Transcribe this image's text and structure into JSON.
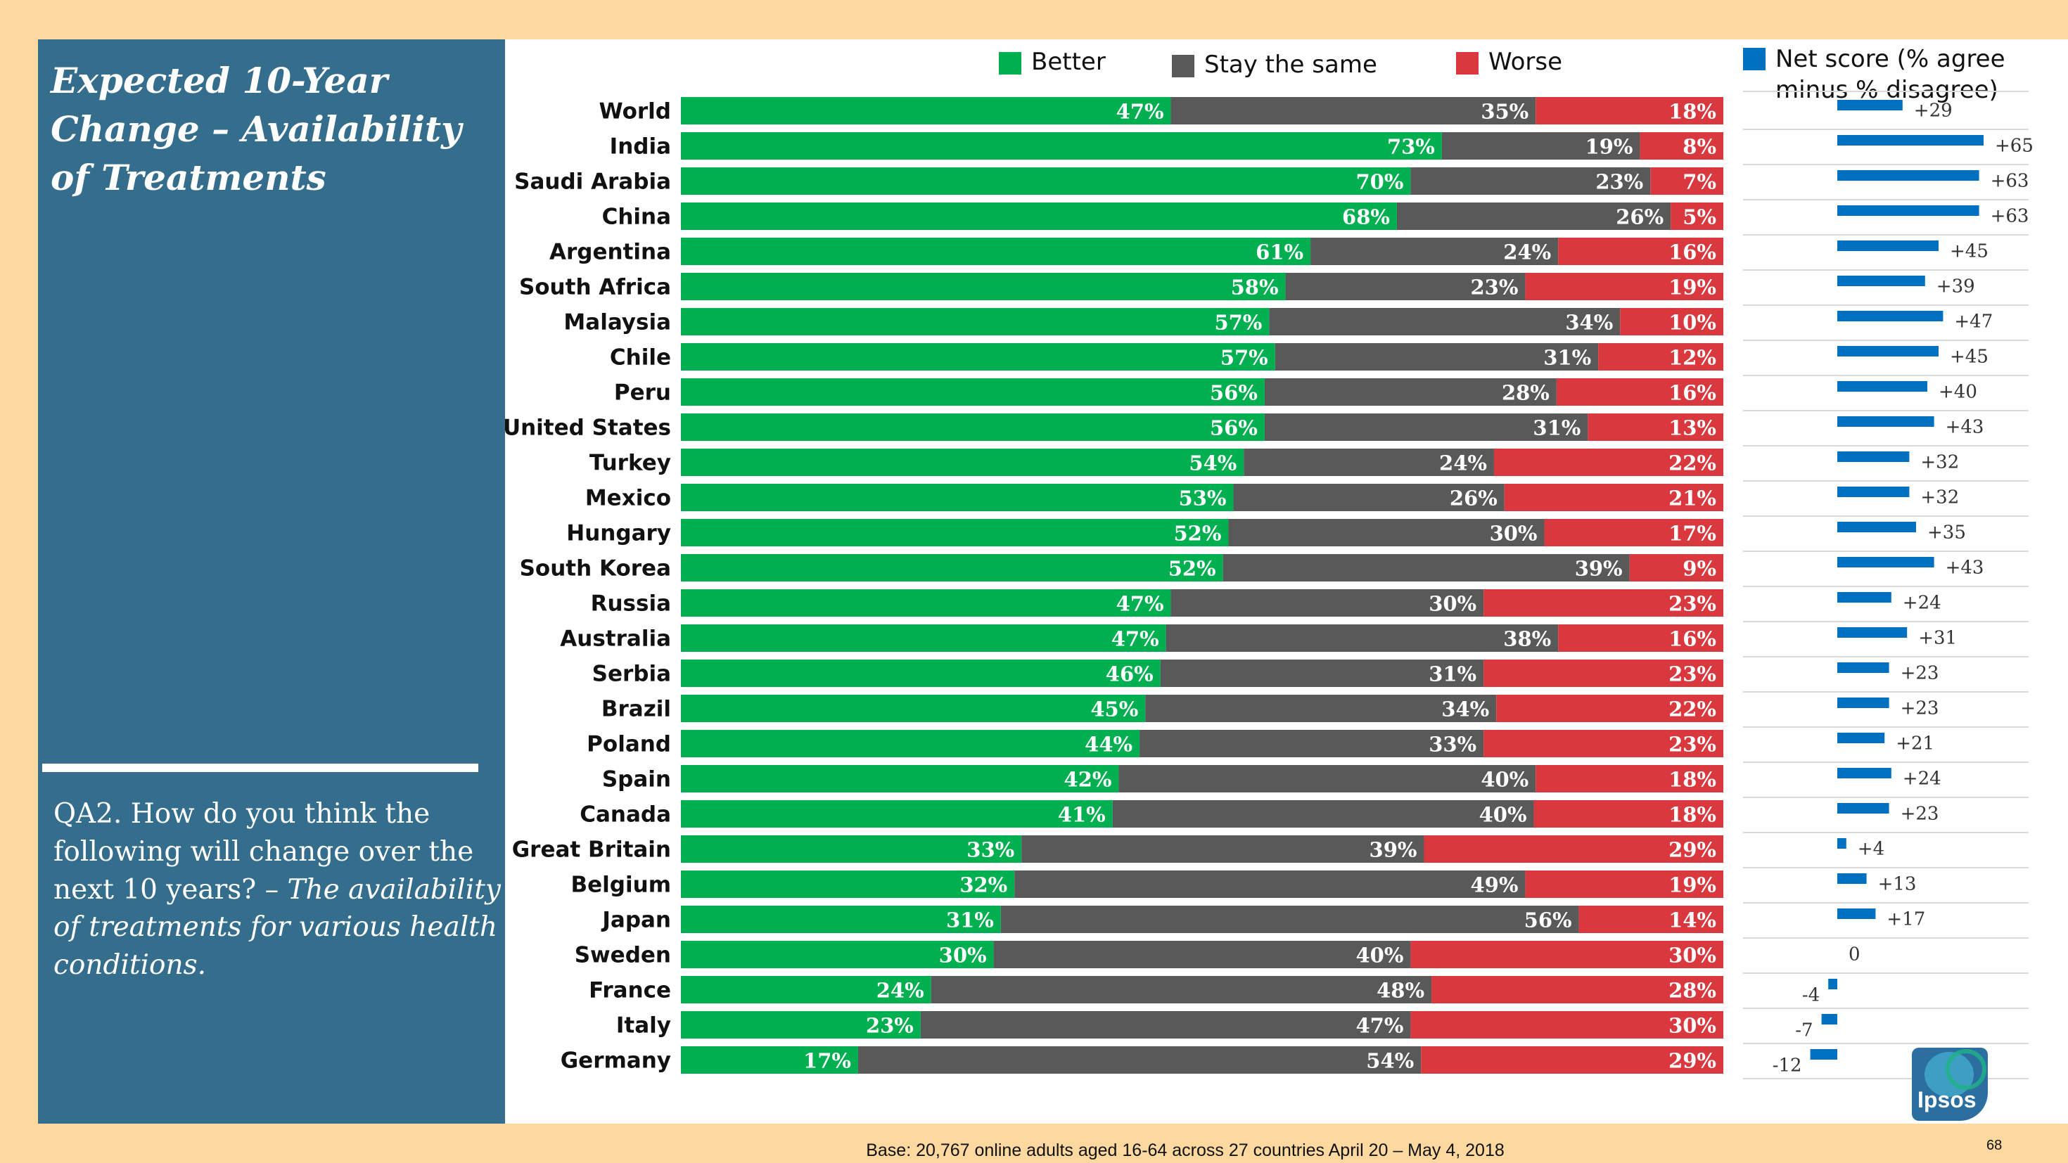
{
  "panel": {
    "title": "Expected 10-Year Change – Availability of Treatments",
    "question_prefix": "QA2. How do you think the following will change over the next 10 years? – ",
    "question_italic": "The availability of treatments for various health conditions."
  },
  "legend": {
    "better": "Better",
    "same": "Stay the same",
    "worse": "Worse",
    "net": "Net score (% agree minus % disagree)"
  },
  "colors": {
    "better": "#00b050",
    "same": "#595959",
    "worse": "#d9393e",
    "net": "#0070c0",
    "panel": "#356d8d",
    "background": "#fdd9a0"
  },
  "base_note": "Base: 20,767 online adults aged 16-64 across 27 countries  April 20 – May 4, 2018",
  "logo_text": "Ipsos",
  "page_number": "68",
  "chart_data": [
    {
      "type": "bar",
      "stacked": true,
      "orientation": "horizontal",
      "categories": [
        "World",
        "India",
        "Saudi Arabia",
        "China",
        "Argentina",
        "South Africa",
        "Malaysia",
        "Chile",
        "Peru",
        "United States",
        "Turkey",
        "Mexico",
        "Hungary",
        "South Korea",
        "Russia",
        "Australia",
        "Serbia",
        "Brazil",
        "Poland",
        "Spain",
        "Canada",
        "Great Britain",
        "Belgium",
        "Japan",
        "Sweden",
        "France",
        "Italy",
        "Germany"
      ],
      "series": [
        {
          "name": "Better",
          "values": [
            47,
            73,
            70,
            68,
            61,
            58,
            57,
            57,
            56,
            56,
            54,
            53,
            52,
            52,
            47,
            47,
            46,
            45,
            44,
            42,
            41,
            33,
            32,
            31,
            30,
            24,
            23,
            17
          ]
        },
        {
          "name": "Stay the same",
          "values": [
            35,
            19,
            23,
            26,
            24,
            23,
            34,
            31,
            28,
            31,
            24,
            26,
            30,
            39,
            30,
            38,
            31,
            34,
            33,
            40,
            40,
            39,
            49,
            56,
            40,
            48,
            47,
            54
          ]
        },
        {
          "name": "Worse",
          "values": [
            18,
            8,
            7,
            5,
            16,
            19,
            10,
            12,
            16,
            13,
            22,
            21,
            17,
            9,
            23,
            16,
            23,
            22,
            23,
            18,
            18,
            29,
            19,
            14,
            30,
            28,
            30,
            29
          ]
        }
      ],
      "labels": {
        "Better": [
          "47%",
          "73%",
          "70%",
          "68%",
          "61%",
          "58%",
          "57%",
          "57%",
          "56%",
          "56%",
          "54%",
          "53%",
          "52%",
          "52%",
          "47%",
          "47%",
          "46%",
          "45%",
          "44%",
          "42%",
          "41%",
          "33%",
          "32%",
          "31%",
          "30%",
          "24%",
          "23%",
          "17%"
        ],
        "Stay the same": [
          "35%",
          "19%",
          "23%",
          "26%",
          "24%",
          "23%",
          "34%",
          "31%",
          "28%",
          "31%",
          "24%",
          "26%",
          "30%",
          "39%",
          "30%",
          "38%",
          "31%",
          "34%",
          "33%",
          "40%",
          "40%",
          "39%",
          "49%",
          "56%",
          "40%",
          "48%",
          "47%",
          "54%"
        ],
        "Worse": [
          "18%",
          "8%",
          "7%",
          "5%",
          "16%",
          "19%",
          "10%",
          "12%",
          "16%",
          "13%",
          "22%",
          "21%",
          "17%",
          "9%",
          "23%",
          "16%",
          "23%",
          "22%",
          "23%",
          "18%",
          "18%",
          "29%",
          "19%",
          "14%",
          "30%",
          "28%",
          "30%",
          "29%"
        ]
      },
      "xlim": [
        0,
        100
      ],
      "legend": "top"
    },
    {
      "type": "bar",
      "orientation": "horizontal",
      "series": [
        {
          "name": "Net score (% agree minus % disagree)",
          "values": [
            29,
            65,
            63,
            63,
            45,
            39,
            47,
            45,
            40,
            43,
            32,
            32,
            35,
            43,
            24,
            31,
            23,
            23,
            21,
            24,
            23,
            4,
            13,
            17,
            0,
            -4,
            -7,
            -12
          ]
        }
      ],
      "value_labels": [
        "+29",
        "+65",
        "+63",
        "+63",
        "+45",
        "+39",
        "+47",
        "+45",
        "+40",
        "+43",
        "+32",
        "+32",
        "+35",
        "+43",
        "+24",
        "+31",
        "+23",
        "+23",
        "+21",
        "+24",
        "+23",
        "+4",
        "+13",
        "+17",
        "0",
        "-4",
        "-7",
        "-12"
      ]
    }
  ]
}
